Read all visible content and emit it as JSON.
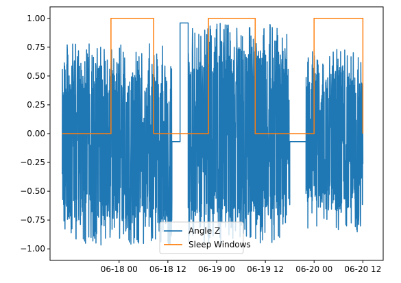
{
  "chart_data": {
    "type": "line",
    "title": "",
    "xlabel": "",
    "ylabel": "",
    "x_axis": {
      "type": "datetime",
      "range": [
        "2024-06-17T07:00",
        "2024-06-20T17:00"
      ],
      "ticks": [
        {
          "value": "2024-06-18T00:00",
          "label": "06-18 00"
        },
        {
          "value": "2024-06-18T12:00",
          "label": "06-18 12"
        },
        {
          "value": "2024-06-19T00:00",
          "label": "06-19 00"
        },
        {
          "value": "2024-06-19T12:00",
          "label": "06-19 12"
        },
        {
          "value": "2024-06-20T00:00",
          "label": "06-20 00"
        },
        {
          "value": "2024-06-20T12:00",
          "label": "06-20 12"
        }
      ]
    },
    "y_axis": {
      "range": [
        -1.1,
        1.1
      ],
      "ticks": [
        {
          "value": -1.0,
          "label": "−1.00"
        },
        {
          "value": -0.75,
          "label": "−0.75"
        },
        {
          "value": -0.5,
          "label": "−0.50"
        },
        {
          "value": -0.25,
          "label": "−0.25"
        },
        {
          "value": 0.0,
          "label": "0.00"
        },
        {
          "value": 0.25,
          "label": "0.25"
        },
        {
          "value": 0.5,
          "label": "0.50"
        },
        {
          "value": 0.75,
          "label": "0.75"
        },
        {
          "value": 1.0,
          "label": "1.00"
        }
      ]
    },
    "grid": false,
    "legend": {
      "position": "lower-center",
      "entries": [
        {
          "label": "Angle Z",
          "color": "#1f77b4"
        },
        {
          "label": "Sleep Windows",
          "color": "#ff7f0e"
        }
      ]
    },
    "series": [
      {
        "name": "Angle Z",
        "color": "#1f77b4",
        "style": "dense-oscillating",
        "segments": [
          {
            "kind": "noise",
            "start": "2024-06-17T10:00",
            "end": "2024-06-18T13:00",
            "min": -0.97,
            "max": 0.78
          },
          {
            "kind": "flat",
            "start": "2024-06-18T13:00",
            "end": "2024-06-18T15:00",
            "value": -0.07
          },
          {
            "kind": "flat",
            "start": "2024-06-18T15:00",
            "end": "2024-06-18T17:00",
            "value": 0.96
          },
          {
            "kind": "noise",
            "start": "2024-06-18T17:00",
            "end": "2024-06-19T18:00",
            "min": -0.95,
            "max": 0.96
          },
          {
            "kind": "flat",
            "start": "2024-06-19T18:00",
            "end": "2024-06-19T22:00",
            "value": -0.07
          },
          {
            "kind": "noise",
            "start": "2024-06-19T22:00",
            "end": "2024-06-20T12:00",
            "min": -0.86,
            "max": 0.76
          }
        ]
      },
      {
        "name": "Sleep Windows",
        "color": "#ff7f0e",
        "style": "step",
        "points": [
          {
            "x": "2024-06-17T10:00",
            "y": 0
          },
          {
            "x": "2024-06-17T22:00",
            "y": 0
          },
          {
            "x": "2024-06-17T22:00",
            "y": 1
          },
          {
            "x": "2024-06-18T08:30",
            "y": 1
          },
          {
            "x": "2024-06-18T08:30",
            "y": 0
          },
          {
            "x": "2024-06-18T22:00",
            "y": 0
          },
          {
            "x": "2024-06-18T22:00",
            "y": 1
          },
          {
            "x": "2024-06-19T09:30",
            "y": 1
          },
          {
            "x": "2024-06-19T09:30",
            "y": 0
          },
          {
            "x": "2024-06-20T00:00",
            "y": 0
          },
          {
            "x": "2024-06-20T00:00",
            "y": 1
          },
          {
            "x": "2024-06-20T12:00",
            "y": 1
          },
          {
            "x": "2024-06-20T12:00",
            "y": 0
          },
          {
            "x": "2024-06-20T12:00",
            "y": 0
          }
        ]
      }
    ]
  }
}
